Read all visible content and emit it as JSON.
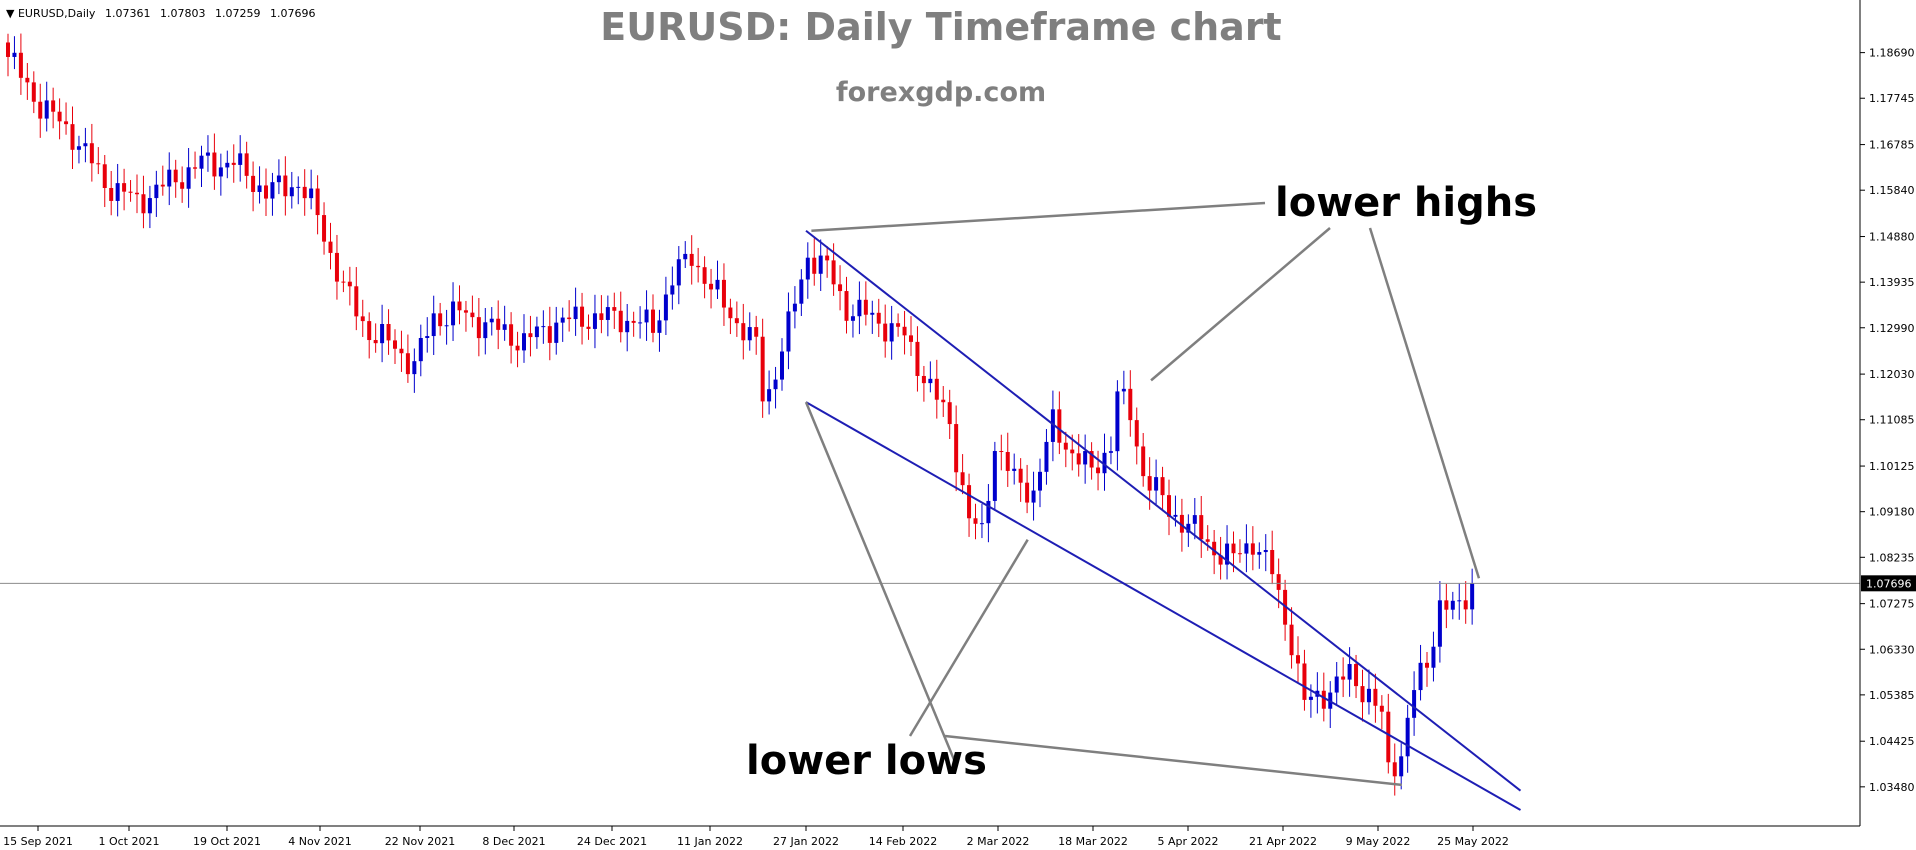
{
  "header": {
    "symbol": "EURUSD,Daily",
    "open": "1.07361",
    "high": "1.07803",
    "low": "1.07259",
    "close": "1.07696"
  },
  "chart_data": {
    "type": "candlestick",
    "title": "EURUSD: Daily Timeframe chart",
    "subtitle": "forexgdp.com",
    "ylim": [
      1.03,
      1.192
    ],
    "yticks": [
      "1.18690",
      "1.17745",
      "1.16785",
      "1.15840",
      "1.14880",
      "1.13935",
      "1.12990",
      "1.12030",
      "1.11085",
      "1.10125",
      "1.09180",
      "1.08235",
      "1.07275",
      "1.06330",
      "1.05385",
      "1.04425",
      "1.03480"
    ],
    "current_price": "1.07696",
    "xticks": [
      "15 Sep 2021",
      "1 Oct 2021",
      "19 Oct 2021",
      "4 Nov 2021",
      "22 Nov 2021",
      "8 Dec 2021",
      "24 Dec 2021",
      "11 Jan 2022",
      "27 Jan 2022",
      "14 Feb 2022",
      "2 Mar 2022",
      "18 Mar 2022",
      "5 Apr 2022",
      "21 Apr 2022",
      "9 May 2022",
      "25 May 2022"
    ],
    "colors": {
      "bull": "#0000cc",
      "bear": "#e8000b",
      "channel": "#1e1eb4",
      "annotation_line": "#7f7f7f",
      "grid_line": "#8c8c8c"
    },
    "anchors": [
      [
        0,
        1.186
      ],
      [
        5,
        1.176
      ],
      [
        10,
        1.17
      ],
      [
        15,
        1.16
      ],
      [
        20,
        1.156
      ],
      [
        25,
        1.16
      ],
      [
        30,
        1.164
      ],
      [
        35,
        1.164
      ],
      [
        40,
        1.158
      ],
      [
        45,
        1.16
      ],
      [
        48,
        1.153
      ],
      [
        52,
        1.138
      ],
      [
        56,
        1.129
      ],
      [
        60,
        1.126
      ],
      [
        63,
        1.122
      ],
      [
        66,
        1.132
      ],
      [
        70,
        1.133
      ],
      [
        75,
        1.13
      ],
      [
        80,
        1.127
      ],
      [
        85,
        1.131
      ],
      [
        90,
        1.132
      ],
      [
        95,
        1.132
      ],
      [
        100,
        1.13
      ],
      [
        103,
        1.14
      ],
      [
        106,
        1.145
      ],
      [
        109,
        1.138
      ],
      [
        112,
        1.133
      ],
      [
        116,
        1.126
      ],
      [
        117,
        1.116
      ],
      [
        118,
        1.117
      ],
      [
        121,
        1.13
      ],
      [
        124,
        1.145
      ],
      [
        127,
        1.142
      ],
      [
        130,
        1.134
      ],
      [
        134,
        1.132
      ],
      [
        139,
        1.128
      ],
      [
        142,
        1.12
      ],
      [
        146,
        1.11
      ],
      [
        149,
        1.09
      ],
      [
        151,
        1.087
      ],
      [
        153,
        1.106
      ],
      [
        156,
        1.098
      ],
      [
        159,
        1.096
      ],
      [
        162,
        1.11
      ],
      [
        165,
        1.104
      ],
      [
        168,
        1.1
      ],
      [
        171,
        1.106
      ],
      [
        172,
        1.116
      ],
      [
        174,
        1.112
      ],
      [
        176,
        1.1
      ],
      [
        180,
        1.092
      ],
      [
        184,
        1.088
      ],
      [
        187,
        1.084
      ],
      [
        190,
        1.082
      ],
      [
        193,
        1.086
      ],
      [
        196,
        1.079
      ],
      [
        199,
        1.065
      ],
      [
        201,
        1.052
      ],
      [
        205,
        1.055
      ],
      [
        208,
        1.058
      ],
      [
        211,
        1.054
      ],
      [
        213,
        1.049
      ],
      [
        214,
        1.038
      ],
      [
        216,
        1.042
      ],
      [
        218,
        1.055
      ],
      [
        220,
        1.06
      ],
      [
        222,
        1.073
      ],
      [
        225,
        1.071
      ],
      [
        227,
        1.077
      ]
    ],
    "channel": {
      "upper": {
        "start": [
          "27 Jan 2022",
          1.15
        ],
        "end": [
          "2 Jun 2022",
          1.034
        ]
      },
      "lower": {
        "start": [
          "27 Jan 2022",
          1.1145
        ],
        "end": [
          "2 Jun 2022",
          1.03
        ]
      }
    },
    "annotations": [
      {
        "text": "lower highs",
        "points": [
          [
            "28 Jan 2022",
            1.15
          ],
          [
            "29 Mar 2022",
            1.119
          ],
          [
            "26 May 2022",
            1.078
          ]
        ]
      },
      {
        "text": "lower lows",
        "points": [
          [
            "27 Jan 2022",
            1.1145
          ],
          [
            "7 Mar 2022",
            1.086
          ],
          [
            "13 May 2022",
            1.0352
          ]
        ]
      }
    ]
  }
}
